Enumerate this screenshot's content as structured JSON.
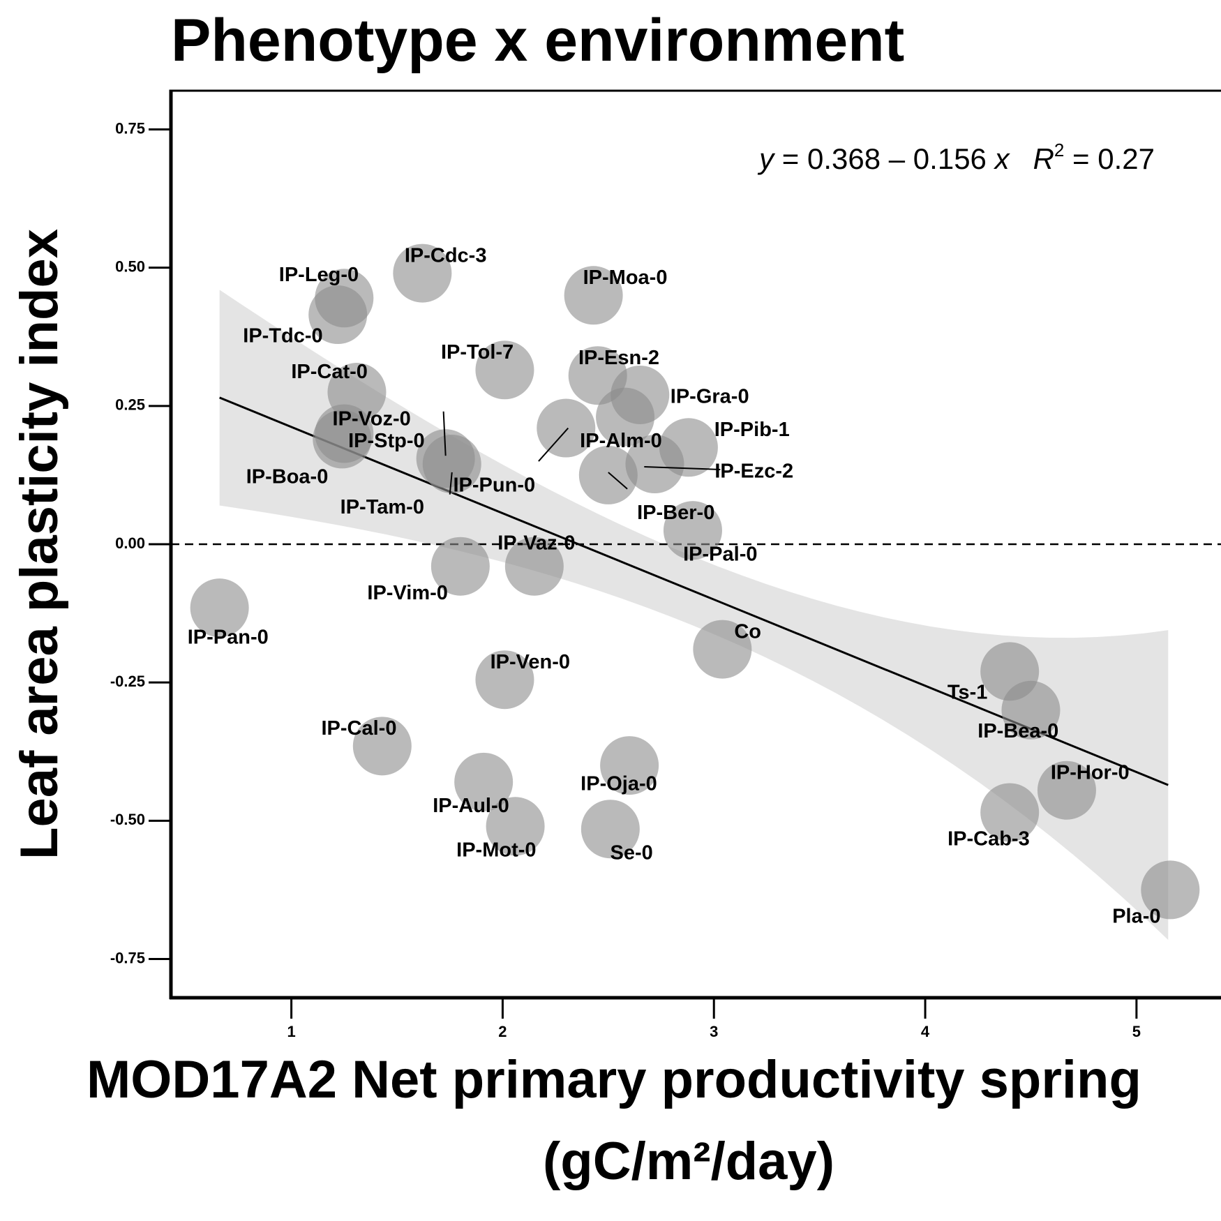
{
  "chart_data": {
    "type": "scatter",
    "title": "Phenotype x environment",
    "xlabel": "MOD17A2 Net primary productivity spring",
    "xlabel_unit": "(gC/m²/day)",
    "ylabel": "Leaf area plasticity index",
    "xlim": [
      0.43,
      5.4
    ],
    "ylim": [
      -0.82,
      0.82
    ],
    "x_ticks": [
      1,
      2,
      3,
      4,
      5
    ],
    "y_ticks": [
      0.75,
      0.5,
      0.25,
      0.0,
      -0.25,
      -0.5,
      -0.75
    ],
    "x_tick_labels": [
      "1",
      "2",
      "3",
      "4",
      "5"
    ],
    "y_tick_labels": [
      "0.75",
      "0.50",
      "0.25",
      "0.00",
      "-0.25",
      "-0.50",
      "-0.75"
    ],
    "equation": {
      "lhs": "y",
      "expr": " = 0.368 – 0.156 ",
      "var": "x",
      "r2_label": "R",
      "r2_sup": "2",
      "r2_value": " = 0.27"
    },
    "fit": {
      "intercept": 0.368,
      "slope": -0.156,
      "x_range": [
        0.66,
        5.15
      ],
      "ci_band_at_ends": [
        [
          0.07,
          0.46
        ],
        [
          -0.72,
          -0.16
        ]
      ]
    },
    "reference_line_y": 0,
    "points": [
      {
        "name": "IP-Leg-0",
        "x": 1.25,
        "y": 0.445
      },
      {
        "name": "IP-Tdc-0",
        "x": 1.22,
        "y": 0.415
      },
      {
        "name": "IP-Cdc-3",
        "x": 1.62,
        "y": 0.49
      },
      {
        "name": "IP-Moa-0",
        "x": 2.43,
        "y": 0.45
      },
      {
        "name": "IP-Cat-0",
        "x": 1.31,
        "y": 0.275
      },
      {
        "name": "IP-Tol-7",
        "x": 2.01,
        "y": 0.315
      },
      {
        "name": "IP-Esn-2",
        "x": 2.45,
        "y": 0.305
      },
      {
        "name": "IP-Gra-0",
        "x": 2.65,
        "y": 0.27
      },
      {
        "name": "IP-Voz-0",
        "x": 1.24,
        "y": 0.19
      },
      {
        "name": "IP-Stp-0",
        "x": 1.73,
        "y": 0.155
      },
      {
        "name": "IP-Tam-0",
        "x": 1.76,
        "y": 0.145
      },
      {
        "name": "IP-Boa-0",
        "x": 1.25,
        "y": 0.2
      },
      {
        "name": "IP-Pun-0",
        "x": 2.3,
        "y": 0.21
      },
      {
        "name": "IP-Alm-0",
        "x": 2.58,
        "y": 0.23
      },
      {
        "name": "IP-Pib-1",
        "x": 2.88,
        "y": 0.175
      },
      {
        "name": "IP-Ezc-2",
        "x": 2.72,
        "y": 0.145
      },
      {
        "name": "IP-Ber-0",
        "x": 2.5,
        "y": 0.125
      },
      {
        "name": "IP-Pal-0",
        "x": 2.9,
        "y": 0.025
      },
      {
        "name": "IP-Vaz-0",
        "x": 2.15,
        "y": -0.04
      },
      {
        "name": "IP-Vim-0",
        "x": 1.8,
        "y": -0.04
      },
      {
        "name": "IP-Pan-0",
        "x": 0.66,
        "y": -0.115
      },
      {
        "name": "Co",
        "x": 3.04,
        "y": -0.19
      },
      {
        "name": "IP-Ven-0",
        "x": 2.01,
        "y": -0.245
      },
      {
        "name": "Ts-1",
        "x": 4.4,
        "y": -0.23
      },
      {
        "name": "IP-Bea-0",
        "x": 4.5,
        "y": -0.3
      },
      {
        "name": "IP-Cal-0",
        "x": 1.43,
        "y": -0.365
      },
      {
        "name": "IP-Aul-0",
        "x": 1.91,
        "y": -0.43
      },
      {
        "name": "IP-Oja-0",
        "x": 2.6,
        "y": -0.4
      },
      {
        "name": "IP-Mot-0",
        "x": 2.06,
        "y": -0.51
      },
      {
        "name": "Se-0",
        "x": 2.51,
        "y": -0.515
      },
      {
        "name": "IP-Hor-0",
        "x": 4.67,
        "y": -0.445
      },
      {
        "name": "IP-Cab-3",
        "x": 4.4,
        "y": -0.485
      },
      {
        "name": "Pla-0",
        "x": 5.16,
        "y": -0.625
      }
    ],
    "label_placements": [
      {
        "name": "IP-Leg-0",
        "lx": 1.13,
        "ly": 0.485
      },
      {
        "name": "IP-Tdc-0",
        "lx": 0.96,
        "ly": 0.375
      },
      {
        "name": "IP-Cdc-3",
        "lx": 1.73,
        "ly": 0.52
      },
      {
        "name": "IP-Moa-0",
        "lx": 2.58,
        "ly": 0.48
      },
      {
        "name": "IP-Cat-0",
        "lx": 1.18,
        "ly": 0.31
      },
      {
        "name": "IP-Tol-7",
        "lx": 1.88,
        "ly": 0.345
      },
      {
        "name": "IP-Esn-2",
        "lx": 2.55,
        "ly": 0.335
      },
      {
        "name": "IP-Gra-0",
        "lx": 2.98,
        "ly": 0.265
      },
      {
        "name": "IP-Voz-0",
        "lx": 1.38,
        "ly": 0.225
      },
      {
        "name": "IP-Stp-0",
        "lx": 1.45,
        "ly": 0.185
      },
      {
        "name": "IP-Tam-0",
        "lx": 1.43,
        "ly": 0.065
      },
      {
        "name": "IP-Boa-0",
        "lx": 0.98,
        "ly": 0.12
      },
      {
        "name": "IP-Pun-0",
        "lx": 1.96,
        "ly": 0.105
      },
      {
        "name": "IP-Alm-0",
        "lx": 2.56,
        "ly": 0.185
      },
      {
        "name": "IP-Pib-1",
        "lx": 3.18,
        "ly": 0.205
      },
      {
        "name": "IP-Ezc-2",
        "lx": 3.19,
        "ly": 0.13
      },
      {
        "name": "IP-Ber-0",
        "lx": 2.82,
        "ly": 0.055
      },
      {
        "name": "IP-Pal-0",
        "lx": 3.03,
        "ly": -0.02
      },
      {
        "name": "IP-Vaz-0",
        "lx": 2.16,
        "ly": 0.0
      },
      {
        "name": "IP-Vim-0",
        "lx": 1.55,
        "ly": -0.09
      },
      {
        "name": "IP-Pan-0",
        "lx": 0.7,
        "ly": -0.17
      },
      {
        "name": "Co",
        "lx": 3.16,
        "ly": -0.16
      },
      {
        "name": "IP-Ven-0",
        "lx": 2.13,
        "ly": -0.215
      },
      {
        "name": "Ts-1",
        "lx": 4.2,
        "ly": -0.27
      },
      {
        "name": "IP-Bea-0",
        "lx": 4.44,
        "ly": -0.34
      },
      {
        "name": "IP-Cal-0",
        "lx": 1.32,
        "ly": -0.335
      },
      {
        "name": "IP-Aul-0",
        "lx": 1.85,
        "ly": -0.475
      },
      {
        "name": "IP-Oja-0",
        "lx": 2.55,
        "ly": -0.435
      },
      {
        "name": "IP-Mot-0",
        "lx": 1.97,
        "ly": -0.555
      },
      {
        "name": "Se-0",
        "lx": 2.61,
        "ly": -0.56
      },
      {
        "name": "IP-Hor-0",
        "lx": 4.78,
        "ly": -0.415
      },
      {
        "name": "IP-Cab-3",
        "lx": 4.3,
        "ly": -0.535
      },
      {
        "name": "Pla-0",
        "lx": 5.0,
        "ly": -0.675
      }
    ],
    "leader_lines": [
      {
        "from": [
          1.72,
          0.24
        ],
        "to": [
          1.73,
          0.16
        ]
      },
      {
        "from": [
          1.76,
          0.13
        ],
        "to": [
          1.75,
          0.09
        ]
      },
      {
        "from": [
          2.17,
          0.15
        ],
        "to": [
          2.31,
          0.21
        ]
      },
      {
        "from": [
          2.67,
          0.14
        ],
        "to": [
          3.03,
          0.135
        ]
      },
      {
        "from": [
          2.5,
          0.13
        ],
        "to": [
          2.59,
          0.1
        ]
      }
    ],
    "colors": {
      "point_fill": "#8c8c8c",
      "point_opacity": "0.6",
      "band_fill": "#d9d9d9",
      "band_opacity": "0.7",
      "line": "#000000"
    },
    "grid": false,
    "legend": "none"
  }
}
